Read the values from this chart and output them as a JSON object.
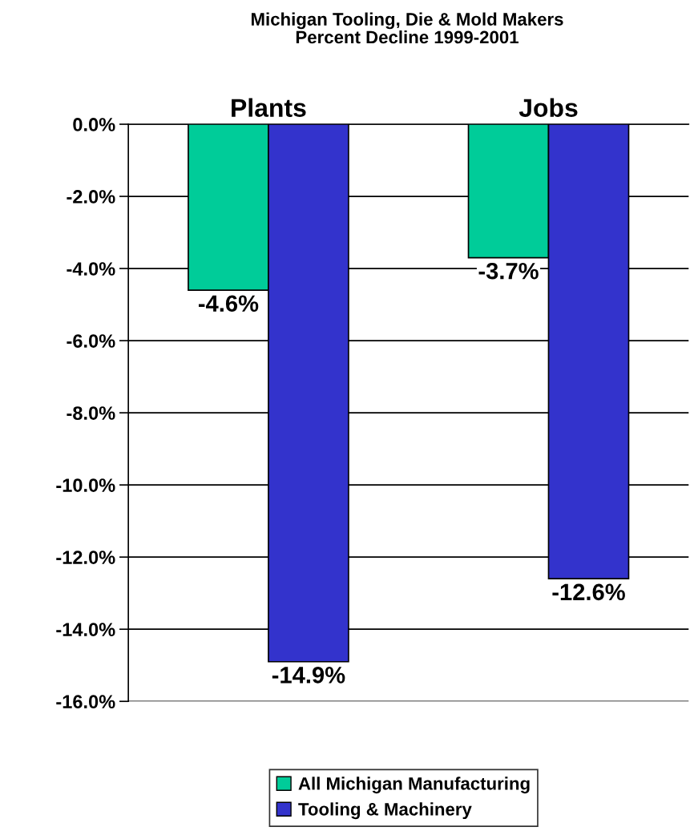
{
  "chart_data": {
    "type": "bar",
    "title": "Michigan Tooling, Die & Mold Makers\nPercent Decline 1999-2001",
    "categories": [
      "Plants",
      "Jobs"
    ],
    "series": [
      {
        "name": "All Michigan Manufacturing",
        "color": "#00cc99",
        "values": [
          -4.6,
          -3.7
        ],
        "value_labels": [
          "-4.6%",
          "-3.7%"
        ]
      },
      {
        "name": "Tooling & Machinery",
        "color": "#3333cc",
        "values": [
          -14.9,
          -12.6
        ],
        "value_labels": [
          "-14.9%",
          "-12.6%"
        ]
      }
    ],
    "ylim": [
      -16,
      0
    ],
    "yticks": [
      {
        "value": 0,
        "label": "0.0%"
      },
      {
        "value": -2,
        "label": "-2.0%"
      },
      {
        "value": -4,
        "label": "-4.0%"
      },
      {
        "value": -6,
        "label": "-6.0%"
      },
      {
        "value": -8,
        "label": "-8.0%"
      },
      {
        "value": -10,
        "label": "-10.0%"
      },
      {
        "value": -12,
        "label": "-12.0%"
      },
      {
        "value": -14,
        "label": "-14.0%"
      },
      {
        "value": -16,
        "label": "-16.0%"
      }
    ],
    "grid": "y",
    "legend": "bottom"
  }
}
